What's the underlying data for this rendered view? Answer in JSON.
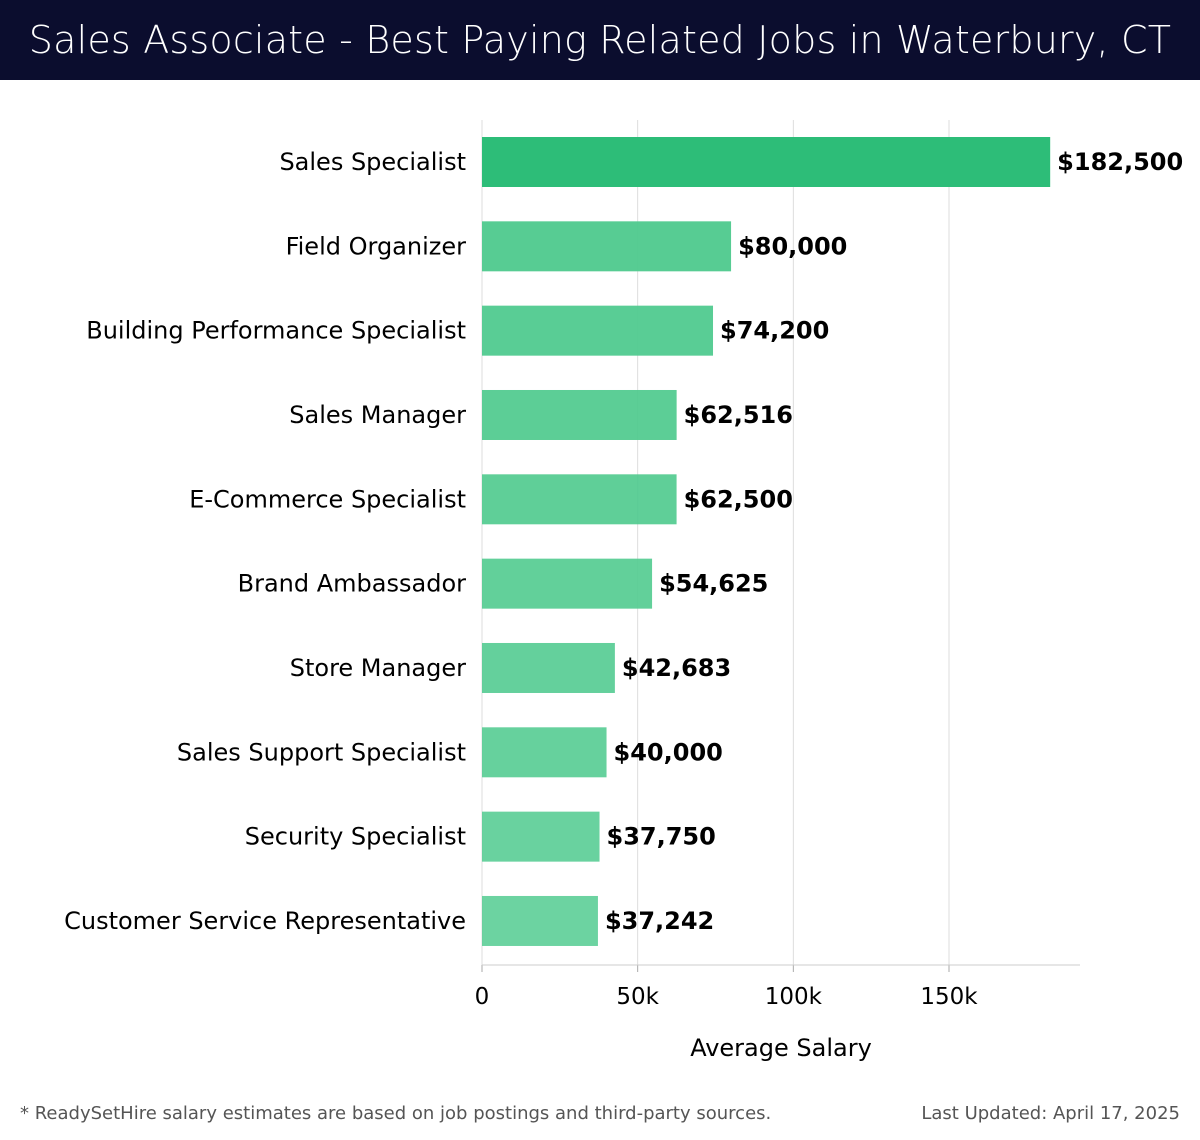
{
  "header": {
    "title": "Sales Associate - Best Paying Related Jobs in Waterbury, CT"
  },
  "colors": {
    "header_bg": "#0b0d2e",
    "bar_top": "#2dbd78",
    "bar_default": "#4fca8e",
    "grid": "#dddddd"
  },
  "chart_data": {
    "type": "bar",
    "orientation": "horizontal",
    "title": "Sales Associate - Best Paying Related Jobs in Waterbury, CT",
    "xlabel": "Average Salary",
    "ylabel": "",
    "xlim": [
      0,
      190000
    ],
    "xticks": [
      0,
      50000,
      100000,
      150000
    ],
    "xtick_labels": [
      "0",
      "50k",
      "100k",
      "150k"
    ],
    "grid": true,
    "categories": [
      "Sales Specialist",
      "Field Organizer",
      "Building Performance Specialist",
      "Sales Manager",
      "E-Commerce Specialist",
      "Brand Ambassador",
      "Store Manager",
      "Sales Support Specialist",
      "Security Specialist",
      "Customer Service Representative"
    ],
    "values": [
      182500,
      80000,
      74200,
      62516,
      62500,
      54625,
      42683,
      40000,
      37750,
      37242
    ],
    "value_labels": [
      "$182,500",
      "$80,000",
      "$74,200",
      "$62,516",
      "$62,500",
      "$54,625",
      "$42,683",
      "$40,000",
      "$37,750",
      "$37,242"
    ]
  },
  "footer": {
    "note": "* ReadySetHire salary estimates are based on job postings and third-party sources.",
    "updated": "Last Updated: April 17, 2025"
  }
}
